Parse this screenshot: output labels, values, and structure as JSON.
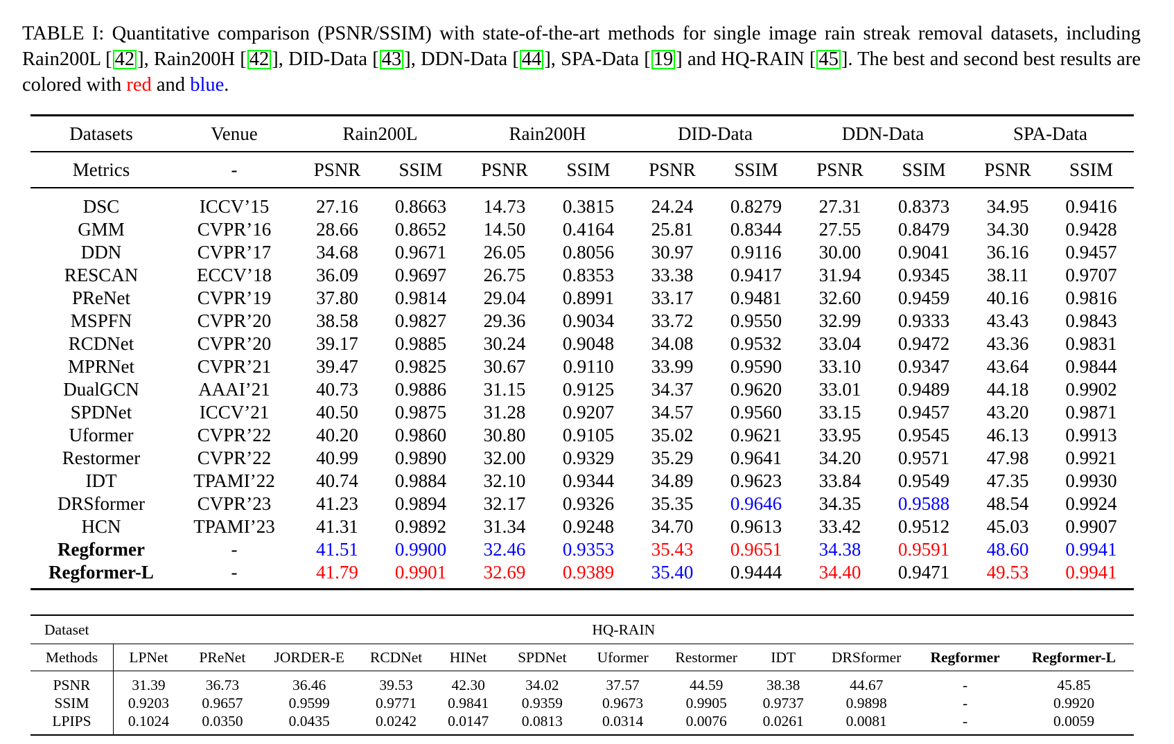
{
  "caption": {
    "p1": "TABLE I: Quantitative comparison (PSNR/SSIM) with state-of-the-art methods for single image rain streak removal datasets, including Rain200L [",
    "c1": "42",
    "p2": "], Rain200H [",
    "c2": "42",
    "p3": "], DID-Data [",
    "c3": "43",
    "p4": "], DDN-Data [",
    "c4": "44",
    "p5": "], SPA-Data [",
    "c5": "19",
    "p6": "] and HQ-RAIN [",
    "c6": "45",
    "p7": "]. The best and second best results are colored with ",
    "red_word": "red",
    "and_word": " and ",
    "blue_word": "blue",
    "end": "."
  },
  "table1": {
    "header": {
      "datasets": "Datasets",
      "venue": "Venue",
      "groups": [
        "Rain200L",
        "Rain200H",
        "DID-Data",
        "DDN-Data",
        "SPA-Data"
      ]
    },
    "metrics_row": {
      "label": "Metrics",
      "venue": "-",
      "cols": [
        "PSNR",
        "SSIM",
        "PSNR",
        "SSIM",
        "PSNR",
        "SSIM",
        "PSNR",
        "SSIM",
        "PSNR",
        "SSIM"
      ]
    },
    "rows": [
      {
        "method": "DSC",
        "venue": "ICCV’15",
        "v": [
          "27.16",
          "0.8663",
          "14.73",
          "0.3815",
          "24.24",
          "0.8279",
          "27.31",
          "0.8373",
          "34.95",
          "0.9416"
        ]
      },
      {
        "method": "GMM",
        "venue": "CVPR’16",
        "v": [
          "28.66",
          "0.8652",
          "14.50",
          "0.4164",
          "25.81",
          "0.8344",
          "27.55",
          "0.8479",
          "34.30",
          "0.9428"
        ]
      },
      {
        "method": "DDN",
        "venue": "CVPR’17",
        "v": [
          "34.68",
          "0.9671",
          "26.05",
          "0.8056",
          "30.97",
          "0.9116",
          "30.00",
          "0.9041",
          "36.16",
          "0.9457"
        ]
      },
      {
        "method": "RESCAN",
        "venue": "ECCV’18",
        "v": [
          "36.09",
          "0.9697",
          "26.75",
          "0.8353",
          "33.38",
          "0.9417",
          "31.94",
          "0.9345",
          "38.11",
          "0.9707"
        ]
      },
      {
        "method": "PReNet",
        "venue": "CVPR’19",
        "v": [
          "37.80",
          "0.9814",
          "29.04",
          "0.8991",
          "33.17",
          "0.9481",
          "32.60",
          "0.9459",
          "40.16",
          "0.9816"
        ]
      },
      {
        "method": "MSPFN",
        "venue": "CVPR’20",
        "v": [
          "38.58",
          "0.9827",
          "29.36",
          "0.9034",
          "33.72",
          "0.9550",
          "32.99",
          "0.9333",
          "43.43",
          "0.9843"
        ]
      },
      {
        "method": "RCDNet",
        "venue": "CVPR’20",
        "v": [
          "39.17",
          "0.9885",
          "30.24",
          "0.9048",
          "34.08",
          "0.9532",
          "33.04",
          "0.9472",
          "43.36",
          "0.9831"
        ]
      },
      {
        "method": "MPRNet",
        "venue": "CVPR’21",
        "v": [
          "39.47",
          "0.9825",
          "30.67",
          "0.9110",
          "33.99",
          "0.9590",
          "33.10",
          "0.9347",
          "43.64",
          "0.9844"
        ]
      },
      {
        "method": "DualGCN",
        "venue": "AAAI’21",
        "v": [
          "40.73",
          "0.9886",
          "31.15",
          "0.9125",
          "34.37",
          "0.9620",
          "33.01",
          "0.9489",
          "44.18",
          "0.9902"
        ]
      },
      {
        "method": "SPDNet",
        "venue": "ICCV’21",
        "v": [
          "40.50",
          "0.9875",
          "31.28",
          "0.9207",
          "34.57",
          "0.9560",
          "33.15",
          "0.9457",
          "43.20",
          "0.9871"
        ]
      },
      {
        "method": "Uformer",
        "venue": "CVPR’22",
        "v": [
          "40.20",
          "0.9860",
          "30.80",
          "0.9105",
          "35.02",
          "0.9621",
          "33.95",
          "0.9545",
          "46.13",
          "0.9913"
        ]
      },
      {
        "method": "Restormer",
        "venue": "CVPR’22",
        "v": [
          "40.99",
          "0.9890",
          "32.00",
          "0.9329",
          "35.29",
          "0.9641",
          "34.20",
          "0.9571",
          "47.98",
          "0.9921"
        ]
      },
      {
        "method": "IDT",
        "venue": "TPAMI’22",
        "v": [
          "40.74",
          "0.9884",
          "32.10",
          "0.9344",
          "34.89",
          "0.9623",
          "33.84",
          "0.9549",
          "47.35",
          "0.9930"
        ]
      },
      {
        "method": "DRSformer",
        "venue": "CVPR’23",
        "v": [
          "41.23",
          "0.9894",
          "32.17",
          "0.9326",
          "35.35",
          "0.9646",
          "34.35",
          "0.9588",
          "48.54",
          "0.9924"
        ],
        "c": [
          "",
          "",
          "",
          "",
          "",
          "b",
          "",
          "b",
          "",
          ""
        ]
      },
      {
        "method": "HCN",
        "venue": "TPAMI’23",
        "v": [
          "41.31",
          "0.9892",
          "31.34",
          "0.9248",
          "34.70",
          "0.9613",
          "33.42",
          "0.9512",
          "45.03",
          "0.9907"
        ]
      },
      {
        "method": "Regformer",
        "venue": "-",
        "bold": true,
        "v": [
          "41.51",
          "0.9900",
          "32.46",
          "0.9353",
          "35.43",
          "0.9651",
          "34.38",
          "0.9591",
          "48.60",
          "0.9941"
        ],
        "c": [
          "b",
          "b",
          "b",
          "b",
          "r",
          "r",
          "b",
          "r",
          "b",
          "b"
        ]
      },
      {
        "method": "Regformer-L",
        "venue": "-",
        "bold": true,
        "v": [
          "41.79",
          "0.9901",
          "32.69",
          "0.9389",
          "35.40",
          "0.9444",
          "34.40",
          "0.9471",
          "49.53",
          "0.9941"
        ],
        "c": [
          "r",
          "r",
          "r",
          "r",
          "b",
          "",
          "r",
          "",
          "r",
          "r"
        ]
      }
    ]
  },
  "table2": {
    "dataset_label": "Dataset",
    "dataset_name": "HQ-RAIN",
    "methods_label": "Methods",
    "methods": [
      "LPNet",
      "PReNet",
      "JORDER-E",
      "RCDNet",
      "HINet",
      "SPDNet",
      "Uformer",
      "Restormer",
      "IDT",
      "DRSformer",
      "Regformer",
      "Regformer-L"
    ],
    "rows": [
      {
        "metric": "PSNR",
        "v": [
          "31.39",
          "36.73",
          "36.46",
          "39.53",
          "42.30",
          "34.02",
          "37.57",
          "44.59",
          "38.38",
          "44.67",
          "-",
          "45.85"
        ]
      },
      {
        "metric": "SSIM",
        "v": [
          "0.9203",
          "0.9657",
          "0.9599",
          "0.9771",
          "0.9841",
          "0.9359",
          "0.9673",
          "0.9905",
          "0.9737",
          "0.9898",
          "-",
          "0.9920"
        ]
      },
      {
        "metric": "LPIPS",
        "v": [
          "0.1024",
          "0.0350",
          "0.0435",
          "0.0242",
          "0.0147",
          "0.0813",
          "0.0314",
          "0.0076",
          "0.0261",
          "0.0081",
          "-",
          "0.0059"
        ]
      }
    ]
  },
  "colors": {
    "best": "#ff0000",
    "second": "#0000ff",
    "cite_border": "#00ff00"
  }
}
